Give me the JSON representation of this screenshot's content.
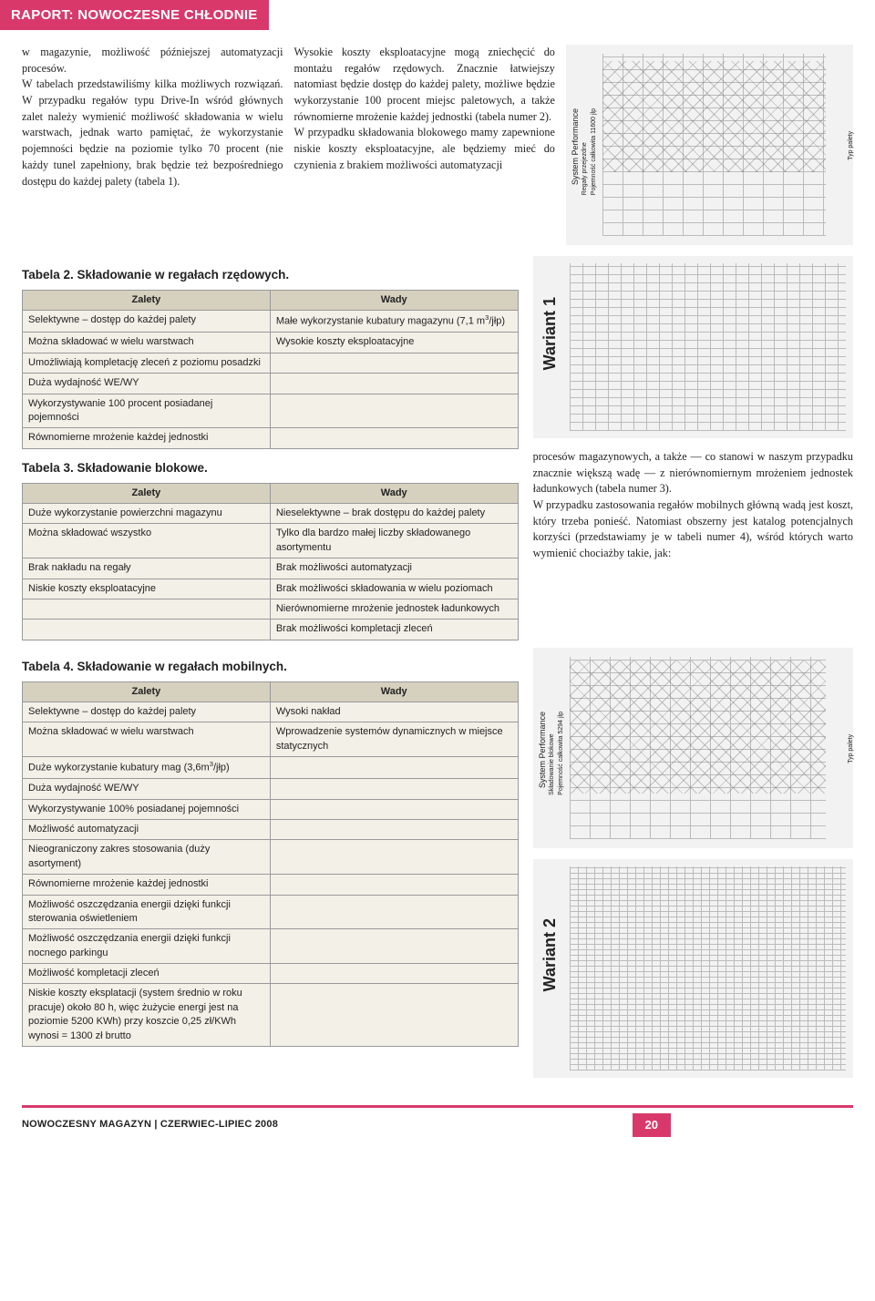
{
  "header": {
    "title": "RAPORT: NOWOCZESNE CHŁODNIE"
  },
  "intro": {
    "col1": "w magazynie, możliwość późniejszej automatyzacji procesów.\n    W tabelach przedstawiliśmy kilka możliwych rozwiązań. W przypadku regałów typu Drive-In wśród głównych zalet należy wymienić możliwość składowania w wielu warstwach, jednak warto pamiętać, że wykorzystanie pojemności będzie na poziomie tylko 70 procent (nie każdy tunel zapełniony, brak będzie też bezpośredniego dostępu do każdej palety (tabela 1).",
    "col2": "    Wysokie koszty eksploatacyjne mogą zniechęcić do montażu regałów rzędowych. Znacznie łatwiejszy natomiast będzie dostęp do każdej palety, możliwe będzie wykorzystanie 100 procent miejsc paletowych, a także równomierne mrożenie każdej jednostki (tabela numer 2).\n    W przypadku składowania blokowego mamy zapewnione niskie koszty eksploatacyjne, ale będziemy mieć do czynienia z brakiem możliwości automatyzacji"
  },
  "diagram1": {
    "label_main": "System Performance",
    "label_sub": "Regały przejezdne\nPojemność całkowita 11600 jlp",
    "right_label": "Typ palety"
  },
  "table2": {
    "title": "Tabela 2. Składowanie w regałach rzędowych.",
    "headers": [
      "Zalety",
      "Wady"
    ],
    "rows": [
      [
        "Selektywne – dostęp do każdej palety",
        "Małe wykorzystanie kubatury magazynu (7,1 m³/jłp)"
      ],
      [
        "Można składować w wielu warstwach",
        "Wysokie koszty eksploatacyjne"
      ],
      [
        "Umożliwiają kompletację zleceń z poziomu posadzki",
        ""
      ],
      [
        "Duża wydajność WE/WY",
        ""
      ],
      [
        "Wykorzystywanie 100 procent posiadanej pojemności",
        ""
      ],
      [
        "Równomierne mrożenie każdej jednostki",
        ""
      ]
    ]
  },
  "table3": {
    "title": "Tabela 3. Składowanie blokowe.",
    "headers": [
      "Zalety",
      "Wady"
    ],
    "rows": [
      [
        "Duże wykorzystanie powierzchni magazynu",
        "Nieselektywne – brak dostępu do każdej palety"
      ],
      [
        "Można składować wszystko",
        "Tylko dla bardzo małej liczby składowanego asortymentu"
      ],
      [
        "Brak nakładu na regały",
        "Brak możliwości automatyzacji"
      ],
      [
        "Niskie koszty eksploatacyjne",
        "Brak możliwości składowania w wielu poziomach"
      ],
      [
        "",
        "Nierównomierne mrożenie jednostek ładunkowych"
      ],
      [
        "",
        "Brak możliwości kompletacji zleceń"
      ]
    ]
  },
  "wariant1": {
    "label": "Wariant 1"
  },
  "right_body": "procesów magazynowych, a także — co stanowi w naszym przypadku znacznie większą wadę — z nierównomiernym mrożeniem jednostek ładunkowych (tabela numer 3).\n    W przypadku zastosowania regałów mobilnych główną wadą jest koszt, który trzeba ponieść. Natomiast obszerny jest katalog potencjalnych korzyści (przedstawiamy je w tabeli numer 4), wśród których warto wymienić chociażby takie, jak:",
  "table4": {
    "title": "Tabela 4. Składowanie w regałach mobilnych.",
    "headers": [
      "Zalety",
      "Wady"
    ],
    "rows": [
      [
        "Selektywne – dostęp do każdej palety",
        "Wysoki nakład"
      ],
      [
        "Można składować w wielu warstwach",
        "Wprowadzenie systemów dynamicznych w miejsce statycznych"
      ],
      [
        "Duże wykorzystanie kubatury mag (3,6m³/jłp)",
        ""
      ],
      [
        "Duża wydajność WE/WY",
        ""
      ],
      [
        "Wykorzystywanie 100% posiadanej pojemności",
        ""
      ],
      [
        "Możliwość automatyzacji",
        ""
      ],
      [
        "Nieograniczony zakres stosowania (duży asortyment)",
        ""
      ],
      [
        "Równomierne mrożenie każdej jednostki",
        ""
      ],
      [
        "Możliwość oszczędzania energii dzięki funkcji sterowania oświetleniem",
        ""
      ],
      [
        "Możliwość oszczędzania energii dzięki funkcji nocnego parkingu",
        ""
      ],
      [
        "Możliwość kompletacji zleceń",
        ""
      ],
      [
        "Niskie koszty eksplatacji (system średnio w roku pracuje) około 80 h, więc żużycie energi jest na poziomie 5200 KWh) przy koszcie 0,25 zł/KWh wynosi = 1300 zł brutto",
        ""
      ]
    ]
  },
  "diagram2": {
    "label_main": "System Performance",
    "label_sub": "Składowanie blokowe\nPojemność całkowita 5294 jlp",
    "right_label": "Typ palety"
  },
  "wariant2": {
    "label": "Wariant 2"
  },
  "footer": {
    "text": "NOWOCZESNY MAGAZYN | CZERWIEC-LIPIEC 2008",
    "page": "20"
  },
  "colors": {
    "accent": "#d9396a",
    "table_header_bg": "#d6d0bf",
    "table_cell_bg": "#f3f0e8",
    "diagram_bg": "#f2f2f2"
  }
}
